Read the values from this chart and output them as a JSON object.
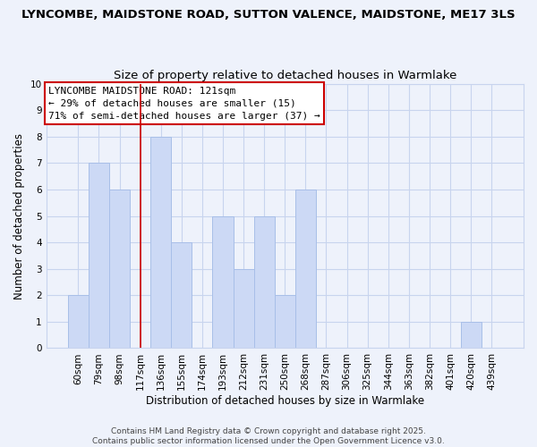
{
  "title_line1": "LYNCOMBE, MAIDSTONE ROAD, SUTTON VALENCE, MAIDSTONE, ME17 3LS",
  "title_line2": "Size of property relative to detached houses in Warmlake",
  "categories": [
    "60sqm",
    "79sqm",
    "98sqm",
    "117sqm",
    "136sqm",
    "155sqm",
    "174sqm",
    "193sqm",
    "212sqm",
    "231sqm",
    "250sqm",
    "268sqm",
    "287sqm",
    "306sqm",
    "325sqm",
    "344sqm",
    "363sqm",
    "382sqm",
    "401sqm",
    "420sqm",
    "439sqm"
  ],
  "values": [
    2,
    7,
    6,
    0,
    8,
    4,
    0,
    5,
    3,
    5,
    2,
    6,
    0,
    0,
    0,
    0,
    0,
    0,
    0,
    1,
    0
  ],
  "bar_color": "#ccd9f5",
  "bar_edge_color": "#a8bfe8",
  "bar_width": 1.0,
  "redline_index": 3,
  "redline_color": "#cc0000",
  "ylabel": "Number of detached properties",
  "xlabel": "Distribution of detached houses by size in Warmlake",
  "ylim": [
    0,
    10
  ],
  "yticks": [
    0,
    1,
    2,
    3,
    4,
    5,
    6,
    7,
    8,
    9,
    10
  ],
  "annotation_title": "LYNCOMBE MAIDSTONE ROAD: 121sqm",
  "annotation_line2": "← 29% of detached houses are smaller (15)",
  "annotation_line3": "71% of semi-detached houses are larger (37) →",
  "annotation_box_color": "#ffffff",
  "annotation_box_edge": "#cc0000",
  "footer_line1": "Contains HM Land Registry data © Crown copyright and database right 2025.",
  "footer_line2": "Contains public sector information licensed under the Open Government Licence v3.0.",
  "background_color": "#eef2fb",
  "grid_color": "#c8d4ee",
  "title_fontsize": 9.5,
  "subtitle_fontsize": 9.5,
  "axis_label_fontsize": 8.5,
  "tick_fontsize": 7.5,
  "annotation_fontsize": 8,
  "footer_fontsize": 6.5
}
